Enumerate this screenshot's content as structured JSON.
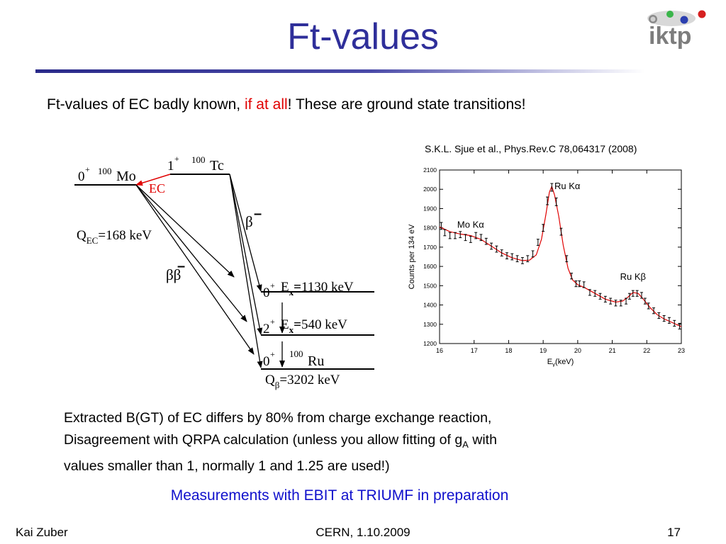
{
  "slide": {
    "title": "Ft-values",
    "logo_text": "iktp",
    "line1": {
      "prefix": "Ft-values of EC badly known, ",
      "highlight": "if at all",
      "suffix": "! These are ground state transitions!"
    },
    "citation": "S.K.L. Sjue et al., Phys.Rev.C 78,064317 (2008)",
    "paragraph": {
      "line1": "Extracted B(GT) of EC differs by 80% from charge exchange reaction,",
      "line2_a": "Disagreement with QRPA calculation (unless you allow fitting of g",
      "line2_sub": "A",
      "line2_b": " with",
      "line3": "values smaller than 1, normally 1 and 1.25 are used!)"
    },
    "preparation": "Measurements with EBIT at TRIUMF in preparation",
    "footer": {
      "left": "Kai Zuber",
      "center": "CERN, 1.10.2009",
      "right": "17"
    }
  },
  "decay_scheme": {
    "mo": {
      "spin": "0",
      "parity": "+",
      "mass": "100",
      "element": "Mo"
    },
    "tc": {
      "spin": "1",
      "parity": "+",
      "mass": "100",
      "element": "Tc"
    },
    "ec_label": "EC",
    "q_ec": {
      "main": "Q",
      "sub": "EC",
      "value": "=168 keV"
    },
    "beta_minus": "β",
    "double_beta": "ββ",
    "minus_sign": "–",
    "level_1130": {
      "spin": "0",
      "parity": "+",
      "label": "E",
      "sub": "x",
      "eq": "=",
      "value": "1130 keV"
    },
    "level_540": {
      "spin": "2",
      "parity": "+",
      "label": "E",
      "sub": "x",
      "eq": "=",
      "value": "540 keV"
    },
    "ru": {
      "spin": "0",
      "parity": "+",
      "mass": "100",
      "element": "Ru"
    },
    "q_beta": {
      "main": "Q",
      "sub": "β",
      "value": "=3202 keV"
    }
  },
  "chart_data": {
    "type": "scatter",
    "xlabel_main": "E",
    "xlabel_sub": "γ",
    "xlabel_unit": "(keV)",
    "ylabel": "Counts per 134 eV",
    "xlim": [
      16,
      23
    ],
    "ylim": [
      1200,
      2100
    ],
    "x_ticks": [
      "16",
      "17",
      "18",
      "19",
      "20",
      "21",
      "22",
      "23"
    ],
    "y_ticks": [
      "1200",
      "1300",
      "1400",
      "1500",
      "1600",
      "1700",
      "1800",
      "1900",
      "2000",
      "2100"
    ],
    "annotations": [
      {
        "text": "Mo Kα",
        "x": 16.9,
        "y": 1800
      },
      {
        "text": "Ru Kα",
        "x": 19.7,
        "y": 2000
      },
      {
        "text": "Ru Kβ",
        "x": 21.6,
        "y": 1530
      }
    ],
    "fit_color": "#e00000",
    "points": [
      [
        16.05,
        1810,
        18
      ],
      [
        16.15,
        1775,
        16
      ],
      [
        16.3,
        1760,
        16
      ],
      [
        16.45,
        1760,
        16
      ],
      [
        16.6,
        1765,
        16
      ],
      [
        16.75,
        1750,
        16
      ],
      [
        16.9,
        1740,
        16
      ],
      [
        17.05,
        1760,
        16
      ],
      [
        17.2,
        1750,
        16
      ],
      [
        17.35,
        1730,
        16
      ],
      [
        17.5,
        1705,
        16
      ],
      [
        17.65,
        1690,
        16
      ],
      [
        17.8,
        1670,
        16
      ],
      [
        17.95,
        1655,
        16
      ],
      [
        18.1,
        1650,
        16
      ],
      [
        18.25,
        1640,
        16
      ],
      [
        18.4,
        1630,
        16
      ],
      [
        18.55,
        1640,
        16
      ],
      [
        18.7,
        1665,
        16
      ],
      [
        18.85,
        1725,
        16
      ],
      [
        19.0,
        1800,
        18
      ],
      [
        19.12,
        1940,
        20
      ],
      [
        19.25,
        2010,
        20
      ],
      [
        19.38,
        1935,
        20
      ],
      [
        19.52,
        1780,
        18
      ],
      [
        19.68,
        1640,
        16
      ],
      [
        19.82,
        1550,
        15
      ],
      [
        19.95,
        1510,
        15
      ],
      [
        20.05,
        1510,
        15
      ],
      [
        20.18,
        1505,
        15
      ],
      [
        20.35,
        1465,
        15
      ],
      [
        20.5,
        1460,
        15
      ],
      [
        20.65,
        1445,
        15
      ],
      [
        20.8,
        1430,
        15
      ],
      [
        20.95,
        1420,
        15
      ],
      [
        21.1,
        1410,
        15
      ],
      [
        21.25,
        1410,
        15
      ],
      [
        21.4,
        1420,
        15
      ],
      [
        21.5,
        1445,
        15
      ],
      [
        21.6,
        1460,
        15
      ],
      [
        21.72,
        1460,
        15
      ],
      [
        21.85,
        1450,
        15
      ],
      [
        21.95,
        1420,
        15
      ],
      [
        22.05,
        1395,
        15
      ],
      [
        22.2,
        1370,
        15
      ],
      [
        22.35,
        1345,
        15
      ],
      [
        22.5,
        1330,
        15
      ],
      [
        22.65,
        1320,
        15
      ],
      [
        22.8,
        1305,
        15
      ],
      [
        22.95,
        1290,
        15
      ]
    ],
    "fit": [
      [
        16.0,
        1805
      ],
      [
        16.3,
        1780
      ],
      [
        16.6,
        1768
      ],
      [
        16.9,
        1760
      ],
      [
        17.2,
        1740
      ],
      [
        17.5,
        1705
      ],
      [
        17.8,
        1670
      ],
      [
        18.1,
        1645
      ],
      [
        18.4,
        1630
      ],
      [
        18.6,
        1632
      ],
      [
        18.8,
        1660
      ],
      [
        18.95,
        1740
      ],
      [
        19.08,
        1870
      ],
      [
        19.18,
        1985
      ],
      [
        19.25,
        2015
      ],
      [
        19.33,
        1970
      ],
      [
        19.45,
        1860
      ],
      [
        19.58,
        1710
      ],
      [
        19.72,
        1590
      ],
      [
        19.85,
        1530
      ],
      [
        20.0,
        1505
      ],
      [
        20.2,
        1490
      ],
      [
        20.5,
        1460
      ],
      [
        20.8,
        1430
      ],
      [
        21.1,
        1415
      ],
      [
        21.3,
        1420
      ],
      [
        21.45,
        1440
      ],
      [
        21.6,
        1465
      ],
      [
        21.75,
        1460
      ],
      [
        21.9,
        1430
      ],
      [
        22.1,
        1385
      ],
      [
        22.3,
        1350
      ],
      [
        22.5,
        1328
      ],
      [
        22.7,
        1312
      ],
      [
        22.9,
        1295
      ],
      [
        23.0,
        1288
      ]
    ]
  }
}
